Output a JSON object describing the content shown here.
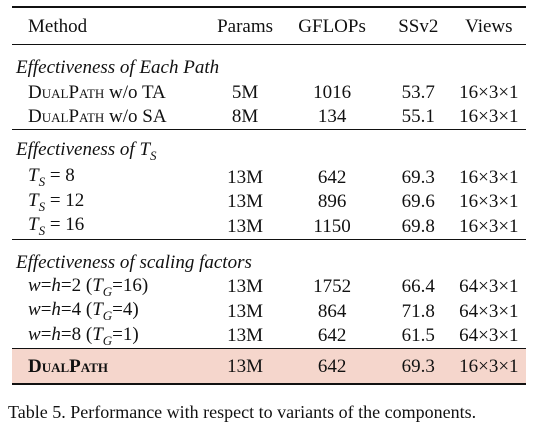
{
  "table": {
    "headers": [
      "Method",
      "Params",
      "GFLOPs",
      "SSv2",
      "Views"
    ],
    "sections": [
      {
        "title": "Effectiveness of Each Path",
        "rows": [
          {
            "method": "DUALPATH w/o TA",
            "params": "5M",
            "gflops": "1016",
            "ssv2": "53.7",
            "views": "16×3×1"
          },
          {
            "method": "DUALPATH w/o SA",
            "params": "8M",
            "gflops": "134",
            "ssv2": "55.1",
            "views": "16×3×1"
          }
        ]
      },
      {
        "title": "Effectiveness of T_S",
        "rows": [
          {
            "method": "T_S = 8",
            "params": "13M",
            "gflops": "642",
            "ssv2": "69.3",
            "views": "16×3×1"
          },
          {
            "method": "T_S = 12",
            "params": "13M",
            "gflops": "896",
            "ssv2": "69.6",
            "views": "16×3×1"
          },
          {
            "method": "T_S = 16",
            "params": "13M",
            "gflops": "1150",
            "ssv2": "69.8",
            "views": "16×3×1"
          }
        ]
      },
      {
        "title": "Effectiveness of scaling factors",
        "rows": [
          {
            "method": "w=h=2 (T_G=16)",
            "params": "13M",
            "gflops": "1752",
            "ssv2": "66.4",
            "views": "64×3×1"
          },
          {
            "method": "w=h=4 (T_G=4)",
            "params": "13M",
            "gflops": "864",
            "ssv2": "71.8",
            "views": "64×3×1"
          },
          {
            "method": "w=h=8 (T_G=1)",
            "params": "13M",
            "gflops": "642",
            "ssv2": "61.5",
            "views": "64×3×1"
          }
        ]
      }
    ],
    "final": {
      "method": "DUALPATH",
      "params": "13M",
      "gflops": "642",
      "ssv2": "69.3",
      "views": "16×3×1"
    },
    "highlight_color": "#f5d6cc"
  },
  "caption": "Table 5. Performance with respect to variants of the components."
}
